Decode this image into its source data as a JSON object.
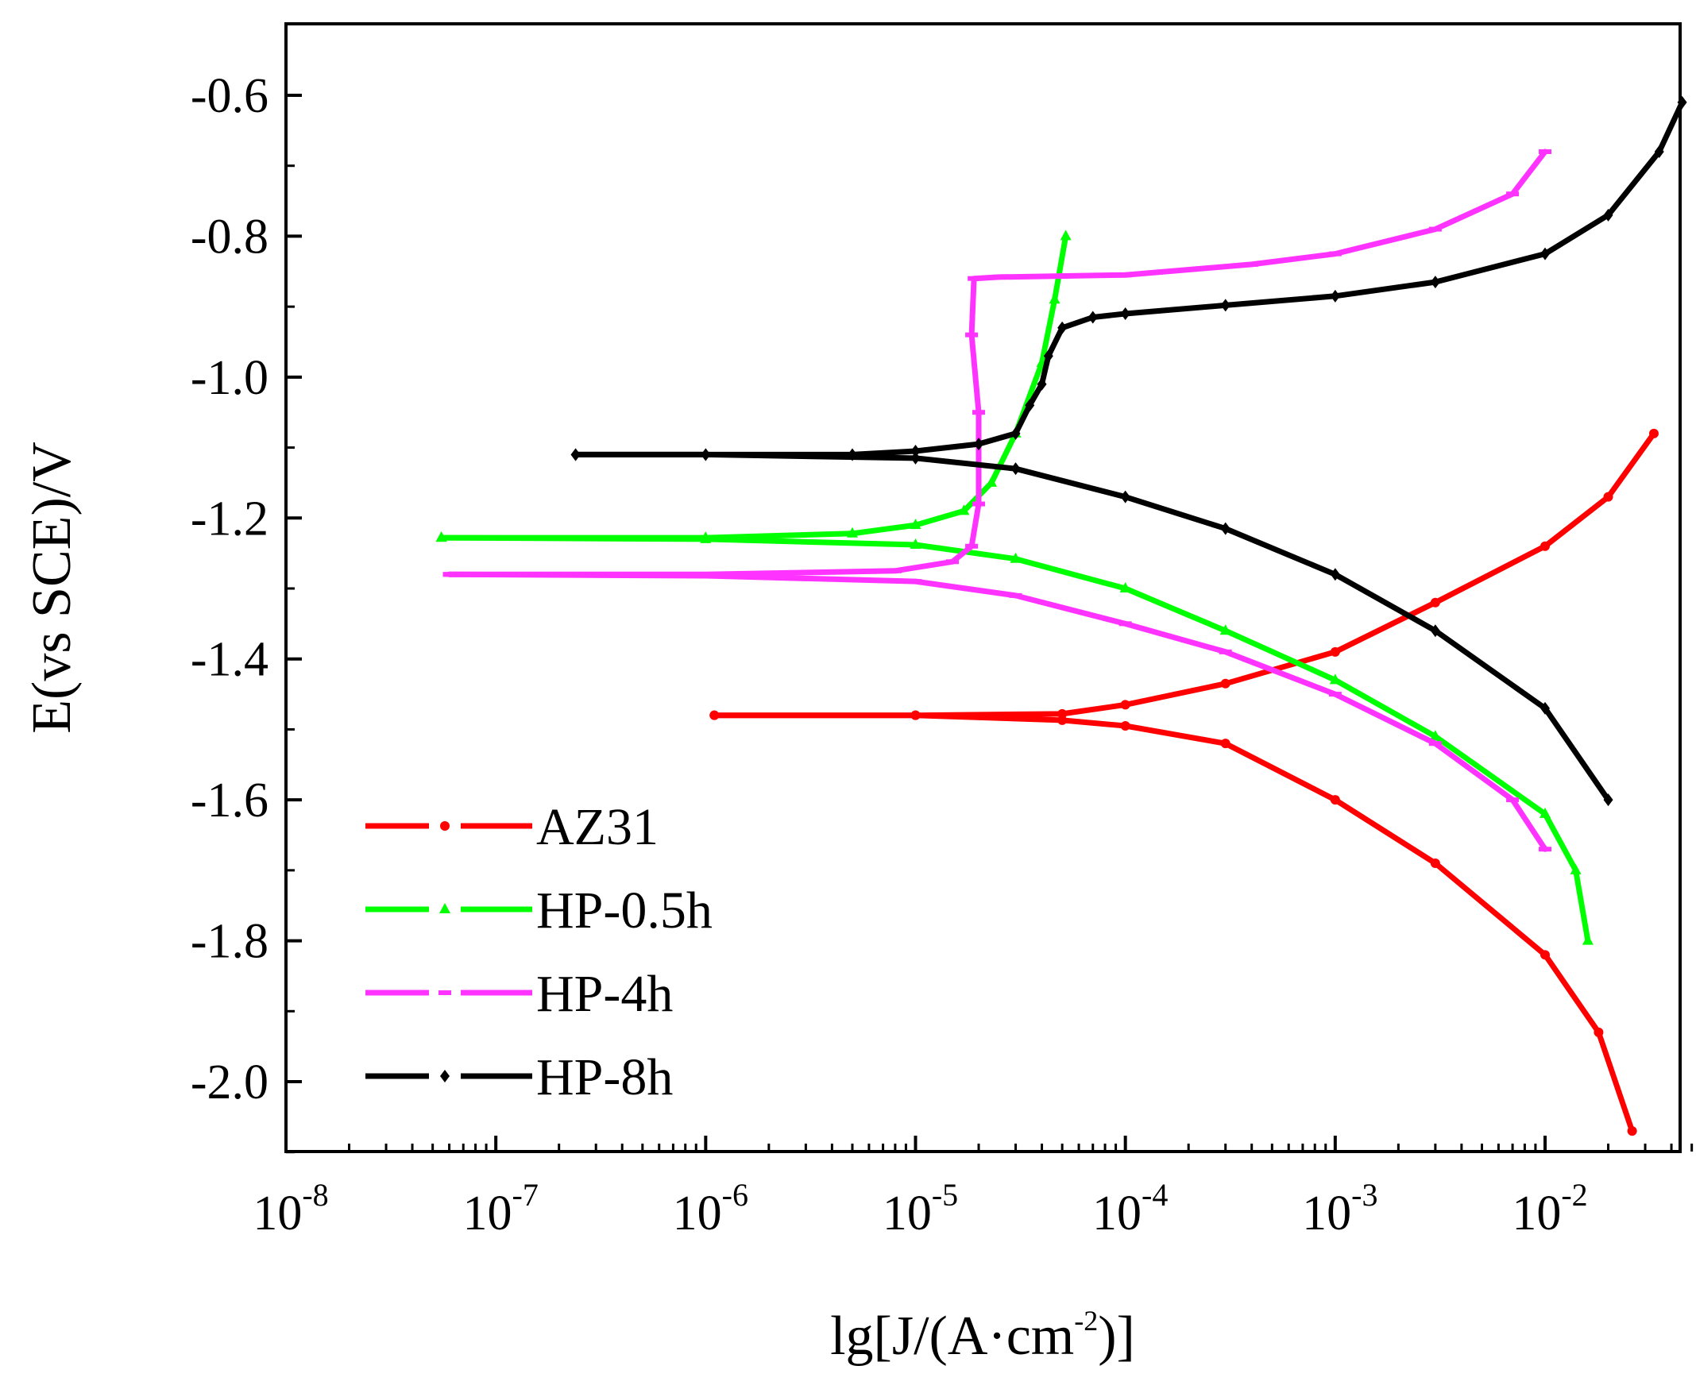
{
  "chart_data": {
    "type": "line",
    "title": "",
    "xlabel": {
      "main": "lg[J/(A·cm",
      "sup": "-2",
      "tail": ")]"
    },
    "ylabel": "E(vs SCE)/V",
    "x_scale": "log",
    "xlim": [
      1e-08,
      0.05
    ],
    "ylim": [
      -2.1,
      -0.5
    ],
    "x_ticks": [
      {
        "base": "10",
        "exp": "-8",
        "value": 1e-08
      },
      {
        "base": "10",
        "exp": "-7",
        "value": 1e-07
      },
      {
        "base": "10",
        "exp": "-6",
        "value": 1e-06
      },
      {
        "base": "10",
        "exp": "-5",
        "value": 1e-05
      },
      {
        "base": "10",
        "exp": "-4",
        "value": 0.0001
      },
      {
        "base": "10",
        "exp": "-3",
        "value": 0.001
      },
      {
        "base": "10",
        "exp": "-2",
        "value": 0.01
      }
    ],
    "y_ticks": [
      {
        "label": "-0.6",
        "value": -0.6
      },
      {
        "label": "-0.8",
        "value": -0.8
      },
      {
        "label": "-1.0",
        "value": -1.0
      },
      {
        "label": "-1.2",
        "value": -1.2
      },
      {
        "label": "-1.4",
        "value": -1.4
      },
      {
        "label": "-1.6",
        "value": -1.6
      },
      {
        "label": "-1.8",
        "value": -1.8
      },
      {
        "label": "-2.0",
        "value": -2.0
      }
    ],
    "legend_position": "bottom-left",
    "series": [
      {
        "name": "AZ31",
        "color": "#ff0000",
        "marker": "circle",
        "anodic": [
          [
            1.1e-06,
            -1.48
          ],
          [
            1e-05,
            -1.48
          ],
          [
            5e-05,
            -1.478
          ],
          [
            0.0001,
            -1.465
          ],
          [
            0.0003,
            -1.435
          ],
          [
            0.001,
            -1.39
          ],
          [
            0.003,
            -1.32
          ],
          [
            0.01,
            -1.24
          ],
          [
            0.02,
            -1.17
          ],
          [
            0.033,
            -1.08
          ]
        ],
        "cathodic": [
          [
            1.1e-06,
            -1.48
          ],
          [
            1e-05,
            -1.48
          ],
          [
            5e-05,
            -1.487
          ],
          [
            0.0001,
            -1.495
          ],
          [
            0.0003,
            -1.52
          ],
          [
            0.001,
            -1.6
          ],
          [
            0.003,
            -1.69
          ],
          [
            0.01,
            -1.82
          ],
          [
            0.018,
            -1.93
          ],
          [
            0.026,
            -2.07
          ]
        ]
      },
      {
        "name": "HP-0.5h",
        "color": "#00ff00",
        "marker": "triangle",
        "anodic": [
          [
            5.5e-08,
            -1.228
          ],
          [
            1e-06,
            -1.228
          ],
          [
            5e-06,
            -1.222
          ],
          [
            1e-05,
            -1.21
          ],
          [
            1.7e-05,
            -1.19
          ],
          [
            2.3e-05,
            -1.15
          ],
          [
            3e-05,
            -1.08
          ],
          [
            4e-05,
            -0.98
          ],
          [
            4.6e-05,
            -0.89
          ],
          [
            5.2e-05,
            -0.8
          ]
        ],
        "cathodic": [
          [
            5.5e-08,
            -1.228
          ],
          [
            1e-06,
            -1.23
          ],
          [
            1e-05,
            -1.238
          ],
          [
            3e-05,
            -1.258
          ],
          [
            0.0001,
            -1.3
          ],
          [
            0.0003,
            -1.36
          ],
          [
            0.001,
            -1.43
          ],
          [
            0.003,
            -1.51
          ],
          [
            0.01,
            -1.62
          ],
          [
            0.014,
            -1.7
          ],
          [
            0.016,
            -1.8
          ]
        ]
      },
      {
        "name": "HP-4h",
        "color": "#ff33ff",
        "marker": "dash",
        "anodic": [
          [
            6e-08,
            -1.28
          ],
          [
            1e-06,
            -1.28
          ],
          [
            8e-06,
            -1.275
          ],
          [
            1.5e-05,
            -1.262
          ],
          [
            1.85e-05,
            -1.24
          ],
          [
            2e-05,
            -1.18
          ],
          [
            2e-05,
            -1.05
          ],
          [
            1.85e-05,
            -0.94
          ],
          [
            1.9e-05,
            -0.86
          ],
          [
            2.5e-05,
            -0.858
          ],
          [
            0.0001,
            -0.855
          ],
          [
            0.0004,
            -0.84
          ],
          [
            0.001,
            -0.825
          ],
          [
            0.003,
            -0.79
          ],
          [
            0.007,
            -0.74
          ],
          [
            0.01,
            -0.68
          ]
        ],
        "cathodic": [
          [
            6e-08,
            -1.28
          ],
          [
            1e-06,
            -1.282
          ],
          [
            1e-05,
            -1.29
          ],
          [
            3e-05,
            -1.31
          ],
          [
            0.0001,
            -1.35
          ],
          [
            0.0003,
            -1.39
          ],
          [
            0.001,
            -1.45
          ],
          [
            0.003,
            -1.52
          ],
          [
            0.007,
            -1.6
          ],
          [
            0.01,
            -1.67
          ]
        ]
      },
      {
        "name": "HP-8h",
        "color": "#000000",
        "marker": "diamond",
        "anodic": [
          [
            2.4e-07,
            -1.11
          ],
          [
            1e-06,
            -1.11
          ],
          [
            5e-06,
            -1.11
          ],
          [
            1e-05,
            -1.105
          ],
          [
            2e-05,
            -1.095
          ],
          [
            3e-05,
            -1.08
          ],
          [
            3.5e-05,
            -1.04
          ],
          [
            4e-05,
            -1.01
          ],
          [
            4.3e-05,
            -0.97
          ],
          [
            5e-05,
            -0.93
          ],
          [
            7e-05,
            -0.915
          ],
          [
            0.0001,
            -0.91
          ],
          [
            0.0003,
            -0.898
          ],
          [
            0.001,
            -0.885
          ],
          [
            0.003,
            -0.865
          ],
          [
            0.01,
            -0.825
          ],
          [
            0.02,
            -0.77
          ],
          [
            0.035,
            -0.68
          ],
          [
            0.045,
            -0.61
          ]
        ],
        "cathodic": [
          [
            2.4e-07,
            -1.11
          ],
          [
            1e-06,
            -1.11
          ],
          [
            1e-05,
            -1.115
          ],
          [
            3e-05,
            -1.13
          ],
          [
            0.0001,
            -1.17
          ],
          [
            0.0003,
            -1.215
          ],
          [
            0.001,
            -1.28
          ],
          [
            0.003,
            -1.36
          ],
          [
            0.01,
            -1.47
          ],
          [
            0.02,
            -1.6
          ]
        ]
      }
    ]
  }
}
